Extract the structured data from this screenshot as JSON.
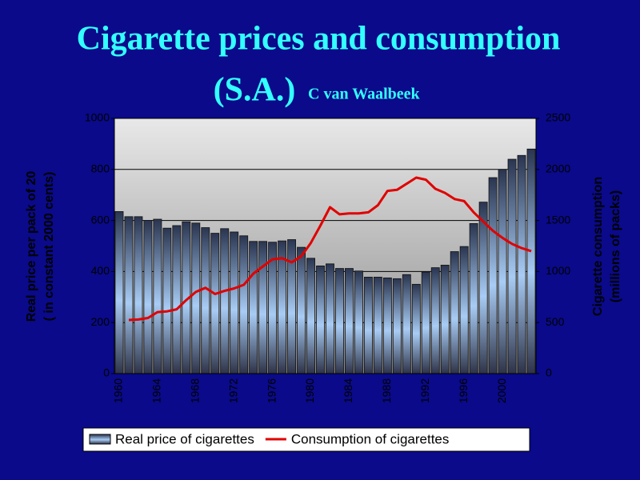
{
  "chart_data": {
    "type": "bar",
    "title": "Cigarette prices and consumption",
    "title_line2": "(S.A.)",
    "subtitle": "C van Waalbeek",
    "y_label": [
      "Real price per pack of 20",
      "( in constant 2000 cents)"
    ],
    "y2_label": [
      "Cigarette consumption",
      "(millions of packs)"
    ],
    "categories": [
      "1960",
      null,
      null,
      null,
      "1964",
      null,
      null,
      null,
      "1968",
      null,
      null,
      null,
      "1972",
      null,
      null,
      null,
      "1976",
      null,
      null,
      null,
      "1980",
      null,
      null,
      null,
      "1984",
      null,
      null,
      null,
      "1988",
      null,
      null,
      null,
      "1992",
      null,
      null,
      null,
      "1996",
      null,
      null,
      null,
      "2000",
      null,
      null,
      null
    ],
    "series": [
      {
        "name": "Real price of cigarettes",
        "type": "bar",
        "color": "#9fc3f0",
        "axis": "y",
        "values": [
          635,
          615,
          615,
          600,
          605,
          570,
          580,
          595,
          590,
          572,
          550,
          568,
          555,
          540,
          518,
          518,
          515,
          520,
          525,
          495,
          452,
          422,
          430,
          412,
          412,
          402,
          378,
          378,
          375,
          372,
          388,
          350,
          398,
          415,
          425,
          478,
          498,
          588,
          672,
          768,
          800,
          840,
          855,
          880
        ]
      },
      {
        "name": "Consumption of cigarettes",
        "type": "line",
        "color": "#e00000",
        "axis": "y2",
        "values": [
          null,
          525,
          530,
          545,
          603,
          610,
          630,
          720,
          800,
          840,
          780,
          810,
          835,
          870,
          980,
          1050,
          1120,
          1130,
          1090,
          1150,
          1280,
          1450,
          1630,
          1560,
          1570,
          1570,
          1580,
          1650,
          1790,
          1800,
          1860,
          1920,
          1900,
          1810,
          1770,
          1710,
          1690,
          1580,
          1490,
          1400,
          1330,
          1270,
          1230,
          1200
        ]
      }
    ],
    "ylim": [
      0,
      1000
    ],
    "yticks": [
      0,
      200,
      400,
      600,
      800,
      1000
    ],
    "y2lim": [
      0,
      2500
    ],
    "y2ticks": [
      0,
      500,
      1000,
      1500,
      2000,
      2500
    ],
    "grid": true,
    "legend": "bottom"
  }
}
